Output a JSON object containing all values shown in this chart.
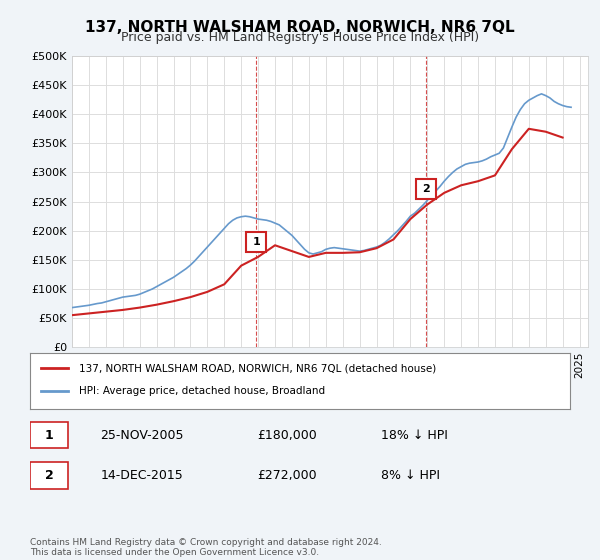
{
  "title": "137, NORTH WALSHAM ROAD, NORWICH, NR6 7QL",
  "subtitle": "Price paid vs. HM Land Registry's House Price Index (HPI)",
  "ylabel_ticks": [
    "£0",
    "£50K",
    "£100K",
    "£150K",
    "£200K",
    "£250K",
    "£300K",
    "£350K",
    "£400K",
    "£450K",
    "£500K"
  ],
  "ytick_values": [
    0,
    50000,
    100000,
    150000,
    200000,
    250000,
    300000,
    350000,
    400000,
    450000,
    500000
  ],
  "ylim": [
    0,
    500000
  ],
  "xlim_start": 1995.0,
  "xlim_end": 2025.5,
  "hpi_color": "#6699cc",
  "price_color": "#cc2222",
  "vline_color": "#cc2222",
  "background_color": "#f0f4f8",
  "plot_bg_color": "#ffffff",
  "grid_color": "#dddddd",
  "transactions": [
    {
      "label": "1",
      "date": "25-NOV-2005",
      "price": 180000,
      "year": 2005.9,
      "hpi_rel": "18% ↓ HPI"
    },
    {
      "label": "2",
      "date": "14-DEC-2015",
      "price": 272000,
      "year": 2015.95,
      "hpi_rel": "8% ↓ HPI"
    }
  ],
  "legend_line1": "137, NORTH WALSHAM ROAD, NORWICH, NR6 7QL (detached house)",
  "legend_line2": "HPI: Average price, detached house, Broadland",
  "footer": "Contains HM Land Registry data © Crown copyright and database right 2024.\nThis data is licensed under the Open Government Licence v3.0.",
  "hpi_years": [
    1995,
    1995.25,
    1995.5,
    1995.75,
    1996,
    1996.25,
    1996.5,
    1996.75,
    1997,
    1997.25,
    1997.5,
    1997.75,
    1998,
    1998.25,
    1998.5,
    1998.75,
    1999,
    1999.25,
    1999.5,
    1999.75,
    2000,
    2000.25,
    2000.5,
    2000.75,
    2001,
    2001.25,
    2001.5,
    2001.75,
    2002,
    2002.25,
    2002.5,
    2002.75,
    2003,
    2003.25,
    2003.5,
    2003.75,
    2004,
    2004.25,
    2004.5,
    2004.75,
    2005,
    2005.25,
    2005.5,
    2005.75,
    2006,
    2006.25,
    2006.5,
    2006.75,
    2007,
    2007.25,
    2007.5,
    2007.75,
    2008,
    2008.25,
    2008.5,
    2008.75,
    2009,
    2009.25,
    2009.5,
    2009.75,
    2010,
    2010.25,
    2010.5,
    2010.75,
    2011,
    2011.25,
    2011.5,
    2011.75,
    2012,
    2012.25,
    2012.5,
    2012.75,
    2013,
    2013.25,
    2013.5,
    2013.75,
    2014,
    2014.25,
    2014.5,
    2014.75,
    2015,
    2015.25,
    2015.5,
    2015.75,
    2016,
    2016.25,
    2016.5,
    2016.75,
    2017,
    2017.25,
    2017.5,
    2017.75,
    2018,
    2018.25,
    2018.5,
    2018.75,
    2019,
    2019.25,
    2019.5,
    2019.75,
    2020,
    2020.25,
    2020.5,
    2020.75,
    2021,
    2021.25,
    2021.5,
    2021.75,
    2022,
    2022.25,
    2022.5,
    2022.75,
    2023,
    2023.25,
    2023.5,
    2023.75,
    2024,
    2024.25,
    2024.5
  ],
  "hpi_values": [
    68000,
    69000,
    70000,
    71000,
    72000,
    73500,
    75000,
    76000,
    78000,
    80000,
    82000,
    84000,
    86000,
    87000,
    88000,
    89000,
    91000,
    94000,
    97000,
    100000,
    104000,
    108000,
    112000,
    116000,
    120000,
    125000,
    130000,
    135000,
    141000,
    148000,
    156000,
    164000,
    172000,
    180000,
    188000,
    196000,
    204000,
    212000,
    218000,
    222000,
    224000,
    225000,
    224000,
    222000,
    220000,
    219000,
    218000,
    216000,
    213000,
    210000,
    204000,
    198000,
    192000,
    184000,
    176000,
    168000,
    162000,
    160000,
    162000,
    164000,
    168000,
    170000,
    171000,
    170000,
    169000,
    168000,
    167000,
    166000,
    165000,
    166000,
    168000,
    170000,
    172000,
    175000,
    180000,
    186000,
    193000,
    200000,
    208000,
    216000,
    225000,
    230000,
    237000,
    244000,
    252000,
    260000,
    268000,
    276000,
    285000,
    293000,
    300000,
    306000,
    310000,
    314000,
    316000,
    317000,
    318000,
    320000,
    323000,
    327000,
    330000,
    333000,
    342000,
    360000,
    378000,
    395000,
    408000,
    418000,
    424000,
    428000,
    432000,
    435000,
    432000,
    428000,
    422000,
    418000,
    415000,
    413000,
    412000
  ],
  "price_years": [
    1995,
    1996,
    1997,
    1998,
    1999,
    2000,
    2001,
    2002,
    2003,
    2004,
    2005,
    2006,
    2007,
    2008,
    2009,
    2010,
    2011,
    2012,
    2013,
    2014,
    2015,
    2016,
    2017,
    2018,
    2019,
    2020,
    2021,
    2022,
    2023,
    2024
  ],
  "price_values": [
    55000,
    58000,
    61000,
    64000,
    68000,
    73000,
    79000,
    86000,
    95000,
    108000,
    140000,
    155000,
    175000,
    165000,
    155000,
    162000,
    162000,
    163000,
    170000,
    185000,
    220000,
    245000,
    265000,
    278000,
    285000,
    295000,
    340000,
    375000,
    370000,
    360000
  ]
}
